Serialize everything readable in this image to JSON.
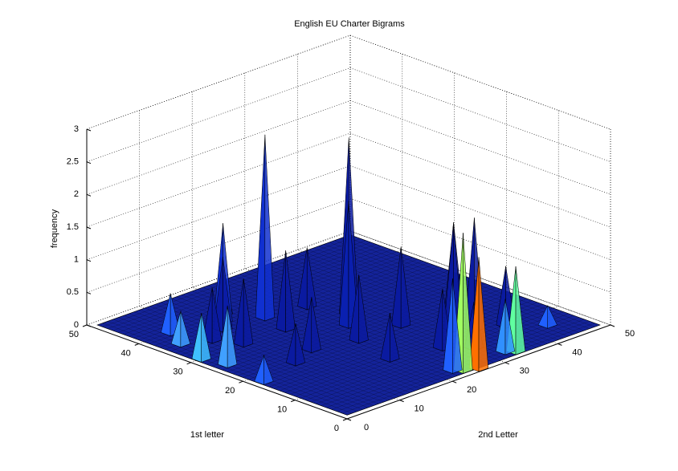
{
  "chart_data": {
    "type": "surface",
    "title": "English EU Charter Bigrams",
    "xlabel": "2nd Letter",
    "ylabel": "1st letter",
    "zlabel": "frequency",
    "xlim": [
      0,
      50
    ],
    "ylim": [
      0,
      50
    ],
    "zlim": [
      0,
      3
    ],
    "xticks": [
      0,
      10,
      20,
      30,
      40,
      50
    ],
    "yticks": [
      0,
      10,
      20,
      30,
      40,
      50
    ],
    "zticks": [
      0,
      0.5,
      1,
      1.5,
      2,
      2.5,
      3
    ],
    "grid": true,
    "color": "#14239a",
    "x": [
      19,
      28,
      25,
      36,
      34,
      14,
      12,
      24,
      26,
      23,
      34,
      33,
      10,
      8,
      6,
      4,
      3,
      2,
      18,
      30,
      40,
      38,
      22,
      15,
      28,
      31,
      10,
      20,
      44,
      2,
      16,
      26
    ],
    "y": [
      35,
      28,
      25,
      12,
      14,
      38,
      36,
      2,
      1,
      3,
      2,
      3,
      30,
      34,
      40,
      36,
      26,
      30,
      30,
      20,
      10,
      18,
      20,
      22,
      10,
      7,
      20,
      12,
      6,
      18,
      40,
      34
    ],
    "z": [
      2.8,
      2.7,
      1.9,
      1.7,
      1.6,
      1.5,
      1.1,
      2.1,
      1.7,
      1.4,
      1.3,
      0.8,
      1.0,
      0.8,
      0.6,
      0.5,
      0.9,
      0.7,
      1.2,
      1.2,
      0.9,
      1.4,
      1.0,
      0.8,
      0.9,
      0.7,
      0.6,
      0.7,
      0.3,
      0.4,
      0.7,
      0.9
    ],
    "colors": [
      "#1030d0",
      "#0a1aa0",
      "#0a20b0",
      "#0a1aa0",
      "#0a1aa0",
      "#1030d0",
      "#0a1aa0",
      "#a0ff60",
      "#ff7000",
      "#2060ff",
      "#60ffa0",
      "#3090ff",
      "#0a1aa0",
      "#0a1aa0",
      "#2060ff",
      "#40a0ff",
      "#40a0ff",
      "#40c0ff",
      "#0a1aa0",
      "#0a1aa0",
      "#0a1aa0",
      "#0a1aa0",
      "#0a1aa0",
      "#0a1aa0",
      "#0a1aa0",
      "#0a1aa0",
      "#0a1aa0",
      "#0a1aa0",
      "#2060ff",
      "#2060ff",
      "#0a1aa0",
      "#0a1aa0"
    ]
  }
}
